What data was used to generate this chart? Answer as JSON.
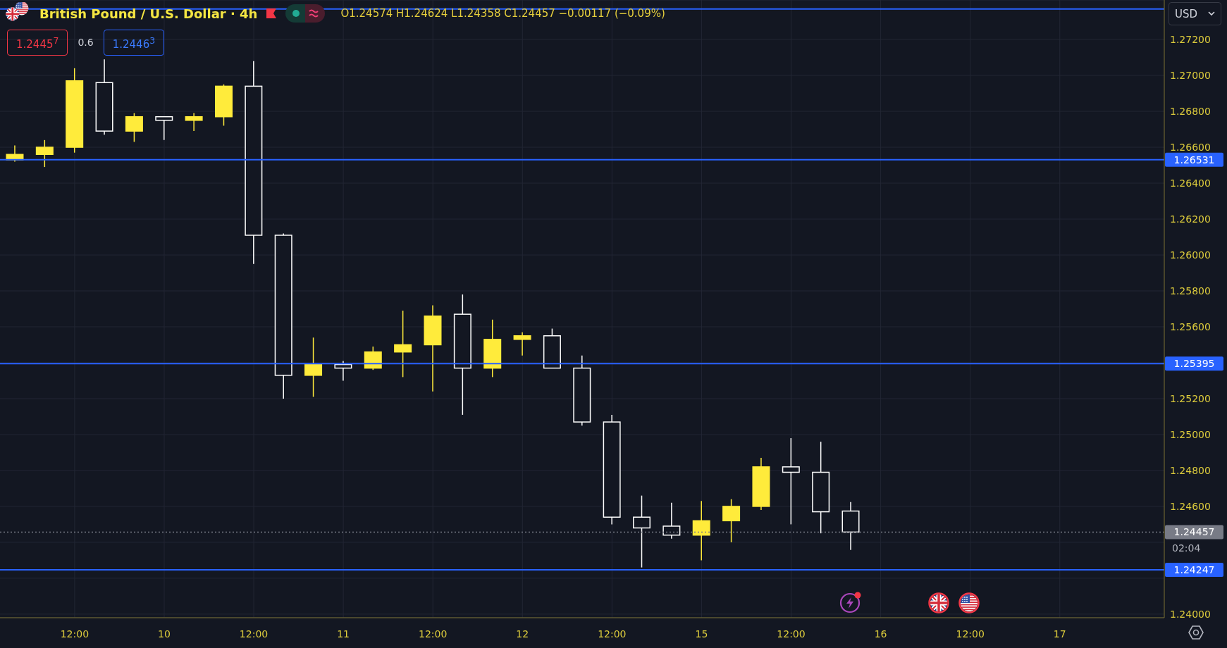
{
  "chart_data": {
    "type": "candlestick",
    "title": "British Pound / U.S. Dollar · 4h",
    "categories": [
      null,
      null,
      "12:00",
      null,
      null,
      "10",
      null,
      null,
      "12:00",
      null,
      null,
      "11",
      null,
      null,
      "12:00",
      null,
      null,
      "12",
      null,
      null,
      "12:00",
      null,
      null,
      "15",
      null,
      null,
      "12:00",
      null,
      null,
      "16",
      null,
      null,
      "12:00",
      null,
      null,
      "17",
      null,
      null,
      null
    ],
    "ohlc": [
      [
        1.2653,
        1.2661,
        1.2652,
        1.2656
      ],
      [
        1.2656,
        1.2664,
        1.2649,
        1.266
      ],
      [
        1.266,
        1.2704,
        1.2657,
        1.2697
      ],
      [
        1.2696,
        1.2709,
        1.2667,
        1.2669
      ],
      [
        1.2669,
        1.2679,
        1.2663,
        1.2677
      ],
      [
        1.2677,
        1.2677,
        1.2664,
        1.2675
      ],
      [
        1.2675,
        1.2679,
        1.2669,
        1.2677
      ],
      [
        1.2677,
        1.2695,
        1.2672,
        1.2694
      ],
      [
        1.2694,
        1.2708,
        1.2595,
        1.2611
      ],
      [
        1.2611,
        1.2612,
        1.252,
        1.2533
      ],
      [
        1.2533,
        1.2554,
        1.2521,
        1.2539
      ],
      [
        1.2539,
        1.2541,
        1.253,
        1.2537
      ],
      [
        1.2537,
        1.2549,
        1.2536,
        1.2546
      ],
      [
        1.2546,
        1.2569,
        1.2532,
        1.255
      ],
      [
        1.255,
        1.2572,
        1.2524,
        1.2566
      ],
      [
        1.2567,
        1.2578,
        1.2511,
        1.2537
      ],
      [
        1.2537,
        1.2564,
        1.2532,
        1.2553
      ],
      [
        1.2553,
        1.2557,
        1.2544,
        1.2555
      ],
      [
        1.2555,
        1.2559,
        1.2537,
        1.2537
      ],
      [
        1.2537,
        1.2544,
        1.2505,
        1.2507
      ],
      [
        1.2507,
        1.2511,
        1.245,
        1.2454
      ],
      [
        1.2454,
        1.2466,
        1.2426,
        1.2448
      ],
      [
        1.2449,
        1.2462,
        1.2442,
        1.2444
      ],
      [
        1.2444,
        1.2463,
        1.243,
        1.2452
      ],
      [
        1.2452,
        1.2464,
        1.244,
        1.246
      ],
      [
        1.246,
        1.2487,
        1.2458,
        1.2482
      ],
      [
        1.2482,
        1.2498,
        1.245,
        1.2479
      ],
      [
        1.2479,
        1.2496,
        1.2445,
        1.2457
      ],
      [
        1.24574,
        1.24624,
        1.24358,
        1.24457
      ],
      null,
      null,
      null,
      null,
      null,
      null,
      null,
      null,
      null,
      null
    ],
    "colors": [
      "#ffeb3b",
      "#ffeb3b",
      "#ffeb3b",
      "#ffffff",
      "#ffeb3b",
      "#ffffff",
      "#ffeb3b",
      "#ffeb3b",
      "#ffffff",
      "#ffffff",
      "#ffeb3b",
      "#ffffff",
      "#ffeb3b",
      "#ffeb3b",
      "#ffeb3b",
      "#ffffff",
      "#ffeb3b",
      "#ffeb3b",
      "#ffffff",
      "#ffffff",
      "#ffffff",
      "#ffffff",
      "#ffffff",
      "#ffeb3b",
      "#ffeb3b",
      "#ffeb3b",
      "#ffffff",
      "#ffffff",
      "#ffffff",
      null,
      null,
      null,
      null,
      null,
      null,
      null,
      null,
      null,
      null
    ],
    "ylim": [
      1.2398,
      1.2742
    ],
    "yticks": [
      {
        "value": 1.24,
        "label": "1.24000"
      },
      {
        "value": 1.242,
        "label": null
      },
      {
        "value": 1.244,
        "label": null
      },
      {
        "value": 1.246,
        "label": "1.24600"
      },
      {
        "value": 1.248,
        "label": "1.24800"
      },
      {
        "value": 1.25,
        "label": "1.25000"
      },
      {
        "value": 1.252,
        "label": "1.25200"
      },
      {
        "value": 1.254,
        "label": null
      },
      {
        "value": 1.256,
        "label": "1.25600"
      },
      {
        "value": 1.258,
        "label": "1.25800"
      },
      {
        "value": 1.26,
        "label": "1.26000"
      },
      {
        "value": 1.262,
        "label": "1.26200"
      },
      {
        "value": 1.264,
        "label": "1.26400"
      },
      {
        "value": 1.266,
        "label": "1.26600"
      },
      {
        "value": 1.268,
        "label": "1.26800"
      },
      {
        "value": 1.27,
        "label": "1.27000"
      },
      {
        "value": 1.272,
        "label": "1.27200"
      }
    ],
    "grid": true,
    "ref_lines": [
      {
        "axis": "y",
        "value": 1.2737,
        "color": "#2962ff"
      },
      {
        "axis": "y",
        "value": 1.26531,
        "label": "1.26531",
        "color": "#2962ff"
      },
      {
        "axis": "y",
        "value": 1.25395,
        "label": "1.25395",
        "color": "#2962ff"
      },
      {
        "axis": "y",
        "value": 1.24247,
        "label": "1.24247",
        "color": "#2962ff"
      },
      {
        "axis": "y",
        "value": 1.24457,
        "label": "1.24457",
        "color": "#787b86",
        "line_style": "dotted"
      }
    ],
    "annotations": [
      "O1.24574 H1.24624 L1.24358 C1.24457 −0.00117 (−0.09%)",
      "1.2445$^{7}$",
      "0.6",
      "1.2446$^{3}$",
      "USD",
      "02:04"
    ]
  }
}
